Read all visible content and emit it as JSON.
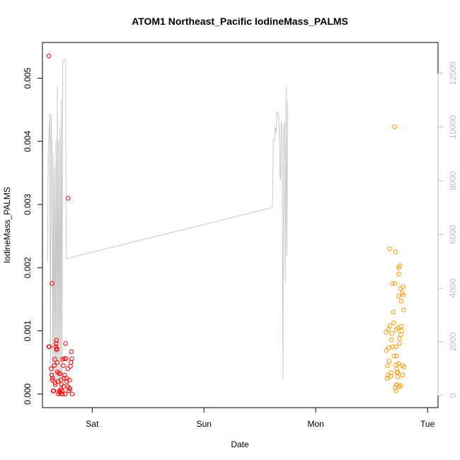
{
  "chart_data": {
    "type": "scatter",
    "title": "ATOM1 Northeast_Pacific IodineMass_PALMS",
    "xlabel": "Date",
    "ylabel": "IodineMass_PALMS",
    "x_ticks": [
      {
        "label": "Sat",
        "t": 1.0
      },
      {
        "label": "Sun",
        "t": 2.0
      },
      {
        "label": "Mon",
        "t": 3.0
      },
      {
        "label": "Tue",
        "t": 4.0
      }
    ],
    "xlim": [
      0.555,
      4.094
    ],
    "ylim": [
      -0.000215,
      0.005565
    ],
    "y_ticks": [
      0.0,
      0.001,
      0.002,
      0.003,
      0.004,
      0.005
    ],
    "y_tick_labels": [
      "0.000",
      "0.001",
      "0.002",
      "0.003",
      "0.004",
      "0.005"
    ],
    "y2lim": [
      -450,
      13150
    ],
    "y2_ticks": [
      0,
      2000,
      4000,
      6000,
      8000,
      10000,
      12000
    ],
    "y2_tick_labels": [
      "0",
      "2000",
      "4000",
      "6000",
      "8000",
      "10000",
      "12000"
    ],
    "colors": {
      "segment1": "#ff0000",
      "segment2": "#ff9900",
      "altitude_line": "#c8c8c8",
      "axis": "#000000",
      "axis_right": "#bbbbbb"
    },
    "series": [
      {
        "points": [
          [
            0.612,
            0.00535
          ],
          [
            0.612,
            0.00075
          ],
          [
            0.617,
            0.00075
          ],
          [
            0.64,
            0.00175
          ],
          [
            0.633,
            0.0004
          ],
          [
            0.637,
            0.0003
          ],
          [
            0.641,
            0.00022
          ],
          [
            0.645,
            0.00025
          ],
          [
            0.65,
            5e-05
          ],
          [
            0.655,
            5e-05
          ],
          [
            0.66,
            0.00045
          ],
          [
            0.664,
            0.00055
          ],
          [
            0.667,
            0.00018
          ],
          [
            0.67,
            0.00015
          ],
          [
            0.674,
            0.00075
          ],
          [
            0.677,
            0.0008
          ],
          [
            0.68,
            0.00085
          ],
          [
            0.683,
            0.00072
          ],
          [
            0.686,
            0.0005
          ],
          [
            0.689,
            0.00035
          ],
          [
            0.693,
            0.0002
          ],
          [
            0.697,
            0.0
          ],
          [
            0.701,
            0.00033
          ],
          [
            0.705,
            5e-05
          ],
          [
            0.709,
            3e-05
          ],
          [
            0.713,
            1e-05
          ],
          [
            0.717,
            7e-05
          ],
          [
            0.721,
            0.00022
          ],
          [
            0.725,
            0.00015
          ],
          [
            0.729,
            5e-05
          ],
          [
            0.733,
            0.0
          ],
          [
            0.737,
            0.00055
          ],
          [
            0.741,
            0.00045
          ],
          [
            0.745,
            0.00012
          ],
          [
            0.749,
            0.00025
          ],
          [
            0.753,
            0.0003
          ],
          [
            0.757,
            0.0
          ],
          [
            0.761,
            0.0008
          ],
          [
            0.765,
            0.00056
          ],
          [
            0.769,
            0.00025
          ],
          [
            0.773,
            0.0002
          ],
          [
            0.777,
            0.00012
          ],
          [
            0.781,
            0.0004
          ],
          [
            0.785,
            0.0031
          ],
          [
            0.789,
            5e-05
          ],
          [
            0.793,
            0.0001
          ],
          [
            0.797,
            0.00022
          ],
          [
            0.801,
            8e-05
          ],
          [
            0.805,
            0.00044
          ],
          [
            0.809,
            0.0005
          ],
          [
            0.813,
            0.00067
          ],
          [
            0.817,
            0.00056
          ],
          [
            0.821,
            0.0
          ],
          [
            0.681,
            0.0007
          ],
          [
            0.713,
            0.00032
          ],
          [
            0.753,
            0.00056
          ]
        ]
      },
      {
        "points": [
          [
            3.629,
            0.00098
          ],
          [
            3.632,
            0.00069
          ],
          [
            3.637,
            0.00025
          ],
          [
            3.641,
            0.00045
          ],
          [
            3.645,
            0.0003
          ],
          [
            3.649,
            0.00102
          ],
          [
            3.653,
            0.00073
          ],
          [
            3.657,
            0.00052
          ],
          [
            3.661,
            0.0023
          ],
          [
            3.665,
            0.00108
          ],
          [
            3.669,
            0.00028
          ],
          [
            3.673,
            0.00034
          ],
          [
            3.677,
            0.00086
          ],
          [
            3.681,
            0.00096
          ],
          [
            3.685,
            0.00175
          ],
          [
            3.689,
            0.00075
          ],
          [
            3.693,
            0.0013
          ],
          [
            3.697,
            0.00113
          ],
          [
            3.701,
            0.0006
          ],
          [
            3.705,
            0.00423
          ],
          [
            3.709,
            0.00175
          ],
          [
            3.713,
            0.00225
          ],
          [
            3.717,
            0.00046
          ],
          [
            3.721,
            0.00102
          ],
          [
            3.725,
            0.0004
          ],
          [
            3.729,
            0.00034
          ],
          [
            3.733,
            0.00027
          ],
          [
            3.737,
            0.00105
          ],
          [
            3.741,
            0.0019
          ],
          [
            3.745,
            0.00012
          ],
          [
            3.749,
            0.0008
          ],
          [
            3.753,
            0.00203
          ],
          [
            3.757,
            0.00167
          ],
          [
            3.761,
            0.00094
          ],
          [
            3.765,
            0.00107
          ],
          [
            3.769,
            0.001
          ],
          [
            3.773,
            0.00045
          ],
          [
            3.777,
            0.0003
          ],
          [
            3.781,
            0.00157
          ],
          [
            3.785,
            0.00133
          ],
          [
            3.789,
            0.00043
          ],
          [
            3.721,
            0.00015
          ],
          [
            3.717,
            5e-05
          ],
          [
            3.725,
            0.00015
          ],
          [
            3.733,
            0.00035
          ],
          [
            3.741,
            0.00048
          ],
          [
            3.749,
            0.00088
          ],
          [
            3.757,
            0.00013
          ],
          [
            3.765,
            0.00147
          ],
          [
            3.773,
            0.0016
          ],
          [
            3.781,
            0.0017
          ],
          [
            3.741,
            0.00155
          ],
          [
            3.741,
            0.002
          ],
          [
            3.709,
            0.0001
          ],
          [
            3.717,
            0.00075
          ],
          [
            3.725,
            0.0006
          ]
        ]
      }
    ],
    "altitude_line": {
      "axis": "right",
      "points": [
        [
          0.6,
          5000
        ],
        [
          0.607,
          9000
        ],
        [
          0.612,
          9500
        ],
        [
          0.62,
          10500
        ],
        [
          0.626,
          600
        ],
        [
          0.632,
          10500
        ],
        [
          0.64,
          9000
        ],
        [
          0.646,
          500
        ],
        [
          0.652,
          9000
        ],
        [
          0.658,
          500
        ],
        [
          0.664,
          8500
        ],
        [
          0.67,
          500
        ],
        [
          0.676,
          9500
        ],
        [
          0.682,
          500
        ],
        [
          0.688,
          11500
        ],
        [
          0.694,
          500
        ],
        [
          0.7,
          9500
        ],
        [
          0.706,
          500
        ],
        [
          0.712,
          10000
        ],
        [
          0.718,
          500
        ],
        [
          0.724,
          11000
        ],
        [
          0.73,
          500
        ],
        [
          0.736,
          12500
        ],
        [
          0.742,
          12500
        ],
        [
          0.755,
          12500
        ],
        [
          0.762,
          12500
        ],
        [
          0.768,
          5100
        ],
        [
          2.612,
          7000
        ],
        [
          2.62,
          9500
        ],
        [
          2.63,
          9500
        ],
        [
          2.638,
          10000
        ],
        [
          2.646,
          9800
        ],
        [
          2.654,
          10600
        ],
        [
          2.662,
          10500
        ],
        [
          2.67,
          10400
        ],
        [
          2.68,
          8200
        ],
        [
          2.686,
          8000
        ],
        [
          2.69,
          10200
        ],
        [
          2.698,
          10000
        ],
        [
          2.706,
          600
        ],
        [
          2.713,
          9800
        ],
        [
          2.72,
          10200
        ],
        [
          2.728,
          4200
        ],
        [
          2.735,
          11500
        ],
        [
          2.742,
          5200
        ],
        [
          2.749,
          11000
        ]
      ]
    }
  }
}
